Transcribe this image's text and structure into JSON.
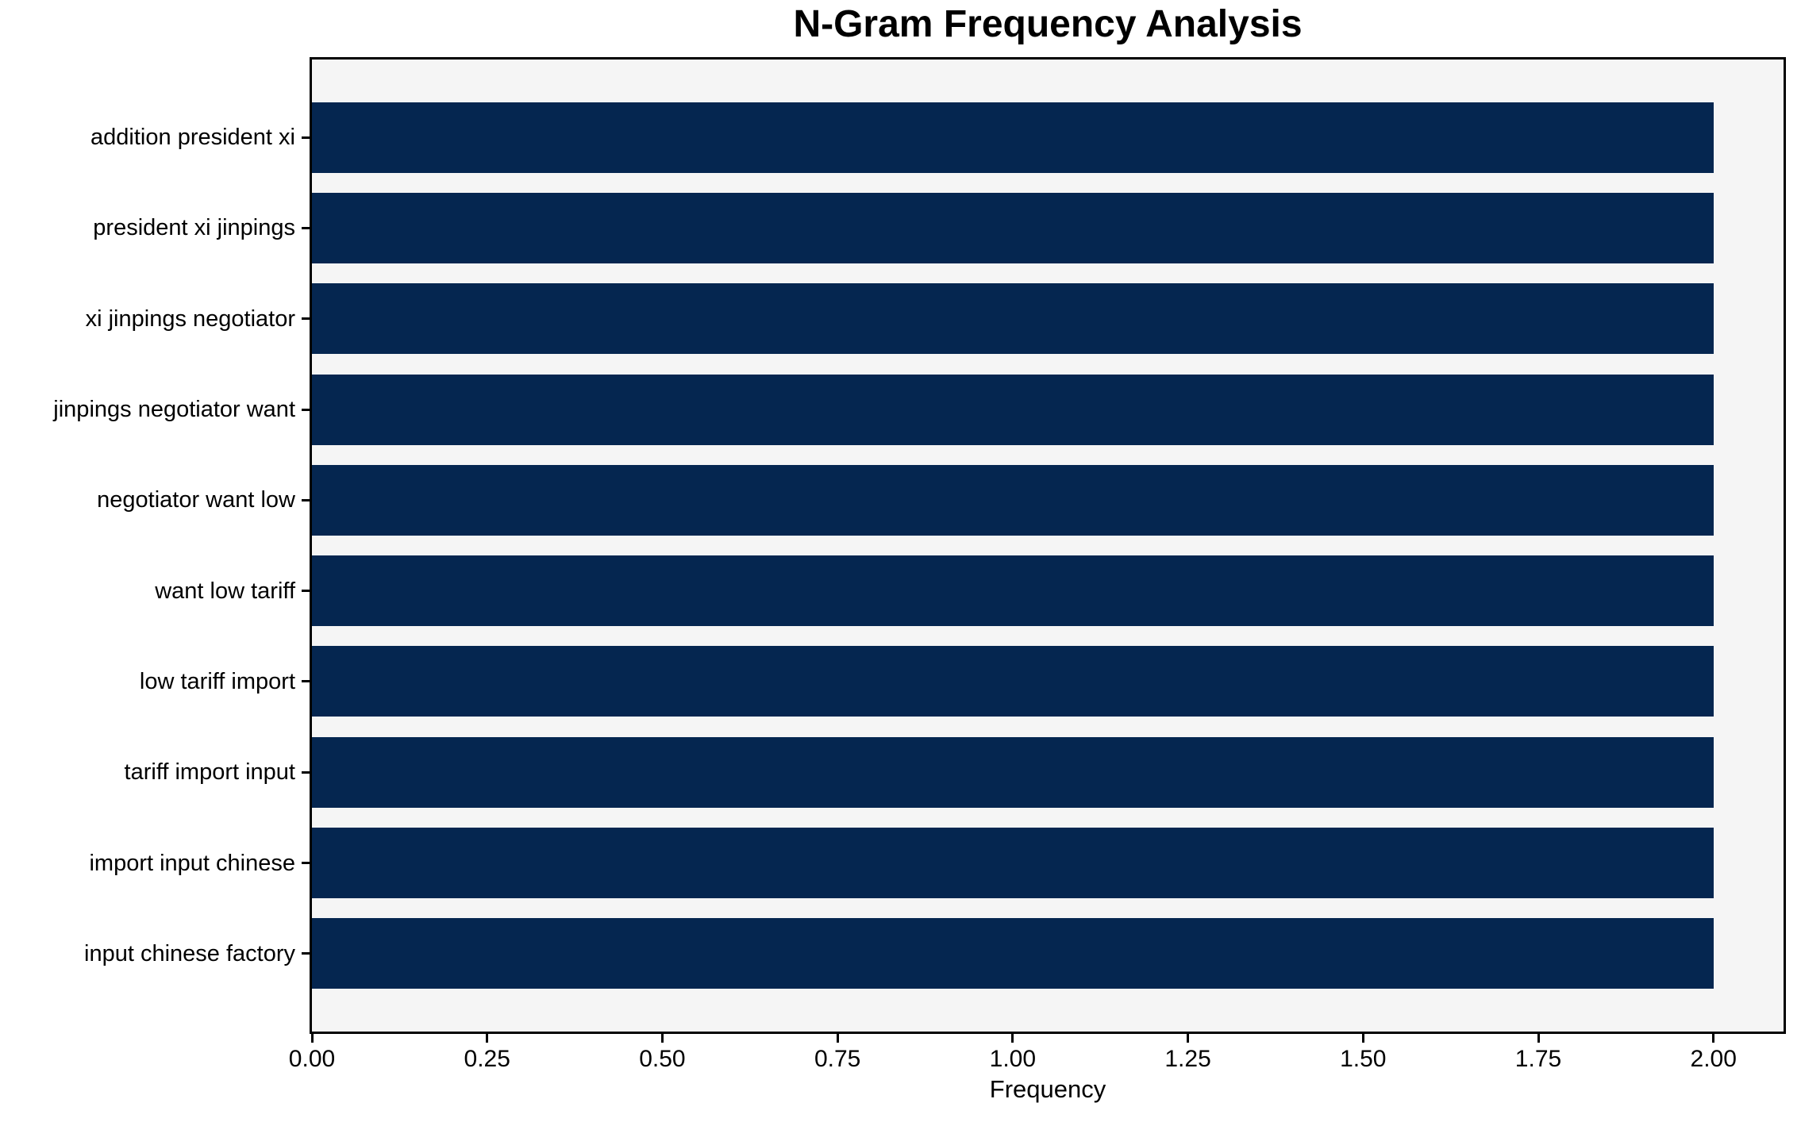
{
  "chart_data": {
    "type": "bar",
    "orientation": "horizontal",
    "title": "N-Gram Frequency Analysis",
    "xlabel": "Frequency",
    "ylabel": "",
    "categories": [
      "addition president xi",
      "president xi jinpings",
      "xi jinpings negotiator",
      "jinpings negotiator want",
      "negotiator want low",
      "want low tariff",
      "low tariff import",
      "tariff import input",
      "import input chinese",
      "input chinese factory"
    ],
    "values": [
      2,
      2,
      2,
      2,
      2,
      2,
      2,
      2,
      2,
      2
    ],
    "xlim": [
      0,
      2.1
    ],
    "xticks": [
      0.0,
      0.25,
      0.5,
      0.75,
      1.0,
      1.25,
      1.5,
      1.75,
      2.0
    ],
    "xtick_labels": [
      "0.00",
      "0.25",
      "0.50",
      "0.75",
      "1.00",
      "1.25",
      "1.50",
      "1.75",
      "2.00"
    ],
    "grid": false,
    "legend": "none",
    "colors": {
      "bar": "#052650",
      "plot_background": "#f5f5f5",
      "figure_background": "#ffffff",
      "axis": "#000000",
      "text": "#000000"
    }
  }
}
